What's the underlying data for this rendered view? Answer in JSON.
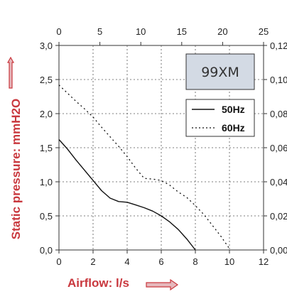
{
  "chart_data": {
    "type": "line",
    "title": "",
    "xlabel": "Airflow: l/s",
    "ylabel": "Static pressure: mmH2O",
    "model_label": "99XM",
    "accent_color": "#c9383e",
    "legend_box_color": "#d3dae4",
    "grid": true,
    "legend_placement": "top-right",
    "xlim": [
      0,
      12
    ],
    "ylim": [
      0,
      3
    ],
    "x_ticks": [
      "0",
      "2",
      "4",
      "6",
      "8",
      "10",
      "12"
    ],
    "y_ticks": [
      "0,0",
      "0,5",
      "1,0",
      "1,5",
      "2,0",
      "2,5",
      "3,0"
    ],
    "top_axis": {
      "lim": [
        0,
        25
      ],
      "ticks": [
        "0",
        "5",
        "10",
        "15",
        "20",
        "25"
      ]
    },
    "right_axis": {
      "lim": [
        0,
        0.12
      ],
      "ticks": [
        "0,00",
        "0,02",
        "0,04",
        "0,06",
        "0,08",
        "0,10",
        "0,12"
      ]
    },
    "series": [
      {
        "name": "50Hz",
        "style": "solid",
        "x": [
          0,
          0.5,
          1,
          1.5,
          2,
          2.5,
          3,
          3.5,
          4,
          4.5,
          5,
          5.5,
          6,
          6.5,
          7,
          7.5,
          8
        ],
        "y": [
          1.62,
          1.48,
          1.32,
          1.17,
          1.02,
          0.87,
          0.76,
          0.71,
          0.7,
          0.66,
          0.62,
          0.57,
          0.5,
          0.41,
          0.3,
          0.16,
          0.0
        ]
      },
      {
        "name": "60Hz",
        "style": "dotted",
        "x": [
          0,
          0.5,
          1,
          1.5,
          2,
          2.5,
          3,
          3.5,
          4,
          4.5,
          5,
          5.5,
          6,
          6.5,
          7,
          7.5,
          8,
          8.5,
          9,
          9.5,
          10
        ],
        "y": [
          2.42,
          2.3,
          2.18,
          2.07,
          1.95,
          1.8,
          1.66,
          1.52,
          1.37,
          1.2,
          1.05,
          1.04,
          1.02,
          0.95,
          0.85,
          0.77,
          0.65,
          0.52,
          0.36,
          0.2,
          0.02
        ]
      }
    ]
  }
}
